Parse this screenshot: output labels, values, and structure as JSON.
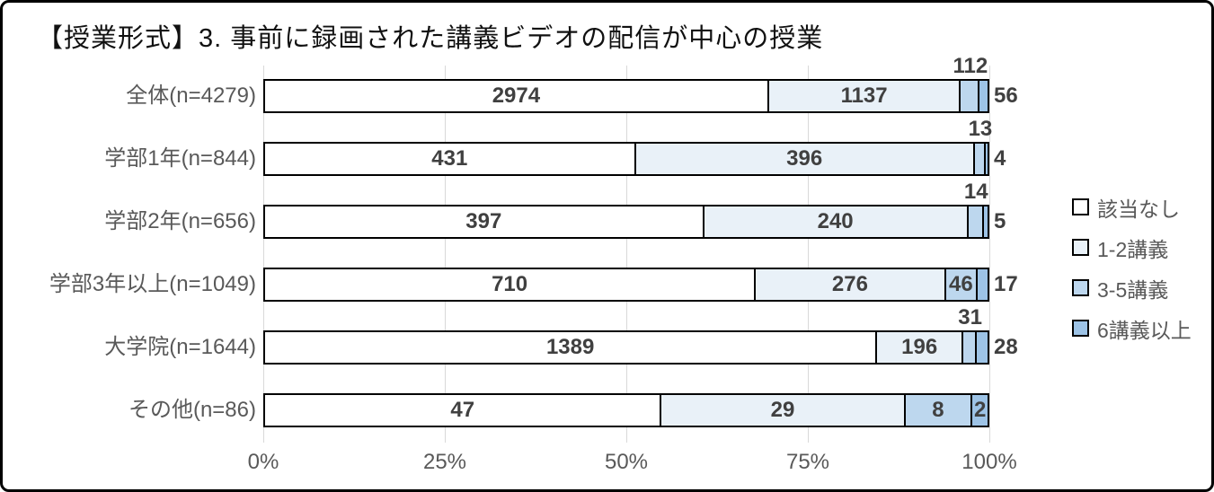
{
  "title": "【授業形式】3. 事前に録画された講義ビデオの配信が中心の授業",
  "chart_data": {
    "type": "bar",
    "orientation": "horizontal",
    "stacked": true,
    "normalized": "percent_of_row_total",
    "title": "【授業形式】3. 事前に録画された講義ビデオの配信が中心の授業",
    "categories": [
      "全体(n=4279)",
      "学部1年(n=844)",
      "学部2年(n=656)",
      "学部3年以上(n=1049)",
      "大学院(n=1644)",
      "その他(n=86)"
    ],
    "row_totals": [
      4279,
      844,
      656,
      1049,
      1644,
      86
    ],
    "series": [
      {
        "name": "該当なし",
        "color": "#ffffff",
        "values": [
          2974,
          431,
          397,
          710,
          1389,
          47
        ]
      },
      {
        "name": "1-2講義",
        "color": "#e9f1f8",
        "values": [
          1137,
          396,
          240,
          276,
          196,
          29
        ]
      },
      {
        "name": "3-5講義",
        "color": "#bdd7ee",
        "values": [
          112,
          13,
          14,
          46,
          31,
          8
        ]
      },
      {
        "name": "6講義以上",
        "color": "#9dc3e6",
        "values": [
          56,
          4,
          5,
          17,
          28,
          2
        ]
      }
    ],
    "label_positions": [
      [
        "inside",
        "inside",
        "above",
        "right"
      ],
      [
        "inside",
        "inside",
        "above",
        "right"
      ],
      [
        "inside",
        "inside",
        "above",
        "right"
      ],
      [
        "inside",
        "inside",
        "inside",
        "right"
      ],
      [
        "inside",
        "inside",
        "above",
        "right"
      ],
      [
        "inside",
        "inside",
        "inside",
        "inside"
      ]
    ],
    "xlabel": "",
    "ylabel": "",
    "x_ticks": [
      "0%",
      "25%",
      "50%",
      "75%",
      "100%"
    ],
    "x_tick_values": [
      0,
      25,
      50,
      75,
      100
    ],
    "xlim": [
      0,
      100
    ],
    "grid": true,
    "gridline_color": "#d9d9d9",
    "bar_border_color": "#000000",
    "legend_position": "right"
  }
}
